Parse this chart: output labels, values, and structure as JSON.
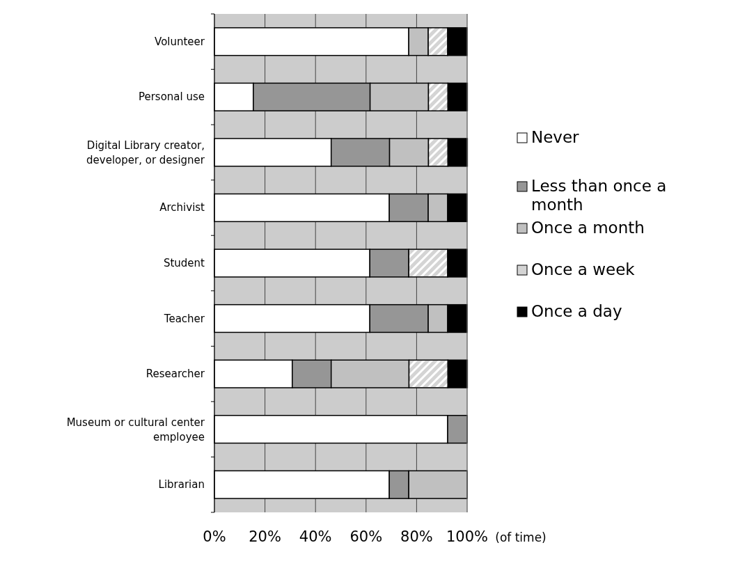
{
  "chart_data": {
    "type": "bar",
    "orientation": "horizontal",
    "stacked": true,
    "xlabel": "(of time)",
    "categories": [
      "Volunteer",
      "Personal use",
      "Digital Library creator, developer, or designer",
      "Archivist",
      "Student",
      "Teacher",
      "Researcher",
      "Museum or cultural center employee",
      "Librarian"
    ],
    "series": [
      {
        "name": "Never",
        "color": "#ffffff",
        "values": [
          76.9,
          15.4,
          46.2,
          69.2,
          61.5,
          61.5,
          30.8,
          92.3,
          69.2
        ]
      },
      {
        "name": "Less than once a month",
        "color": "#969696",
        "values": [
          0,
          46.2,
          23.1,
          15.4,
          15.4,
          23.1,
          15.4,
          7.7,
          7.7
        ]
      },
      {
        "name": "Once a month",
        "color": "#c0c0c0",
        "values": [
          7.7,
          23.1,
          15.4,
          7.7,
          0,
          7.7,
          30.8,
          0,
          23.1
        ]
      },
      {
        "name": "Once a week",
        "color": "#d4d4d4",
        "values": [
          7.7,
          7.7,
          7.7,
          0,
          15.4,
          0,
          15.4,
          0,
          0
        ]
      },
      {
        "name": "Once a day",
        "color": "#000000",
        "values": [
          7.7,
          7.7,
          7.7,
          7.7,
          7.7,
          7.7,
          7.7,
          0,
          0
        ]
      }
    ],
    "xlim": [
      0,
      100
    ],
    "xticks": [
      {
        "value": 0,
        "label": "0%"
      },
      {
        "value": 20,
        "label": "20%"
      },
      {
        "value": 40,
        "label": "40%"
      },
      {
        "value": 60,
        "label": "60%"
      },
      {
        "value": 80,
        "label": "80%"
      },
      {
        "value": 100,
        "label": "100%"
      }
    ],
    "grid": "x",
    "legend": "right"
  }
}
